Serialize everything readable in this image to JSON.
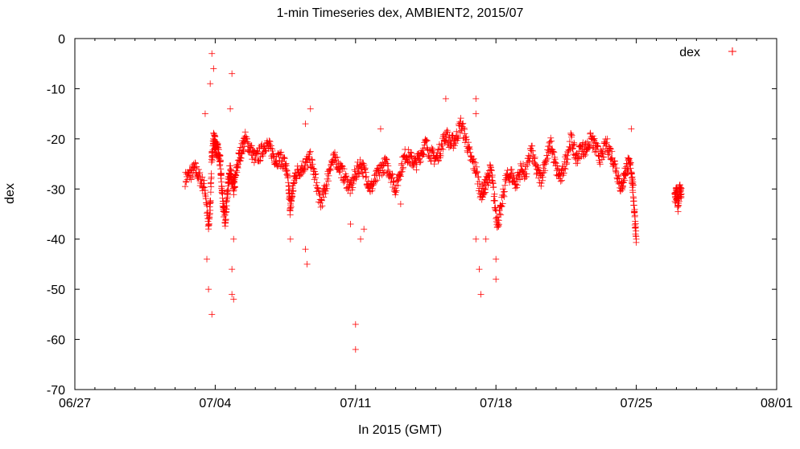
{
  "chart_data": {
    "type": "scatter",
    "title": "1-min Timeseries dex, AMBIENT2, 2015/07",
    "xlabel": "In 2015 (GMT)",
    "ylabel": "dex",
    "x_ticks": [
      "06/27",
      "07/04",
      "07/11",
      "07/18",
      "07/25",
      "08/01"
    ],
    "x_range_days_from_0627": [
      0,
      35
    ],
    "y_ticks": [
      0,
      -10,
      -20,
      -30,
      -40,
      -50,
      -60,
      -70
    ],
    "ylim": [
      -70,
      0
    ],
    "grid": false,
    "legend": "top-right",
    "marker": "+",
    "series": [
      {
        "name": "dex",
        "color": "#ff0000",
        "points": [
          [
            "07/02 12:00",
            -28
          ],
          [
            "07/02 18:00",
            -27
          ],
          [
            "07/03 00:00",
            -26
          ],
          [
            "07/03 06:00",
            -28
          ],
          [
            "07/03 12:00",
            -30
          ],
          [
            "07/03 16:00",
            -38
          ],
          [
            "07/03 18:00",
            -33
          ],
          [
            "07/03 20:00",
            -24
          ],
          [
            "07/03 22:00",
            -20
          ],
          [
            "07/04 00:00",
            -21
          ],
          [
            "07/04 02:00",
            -22
          ],
          [
            "07/04 04:00",
            -23
          ],
          [
            "07/04 06:00",
            -25
          ],
          [
            "07/04 08:00",
            -30
          ],
          [
            "07/04 10:00",
            -34
          ],
          [
            "07/04 12:00",
            -36
          ],
          [
            "07/04 14:00",
            -32
          ],
          [
            "07/04 16:00",
            -28
          ],
          [
            "07/04 18:00",
            -26
          ],
          [
            "07/04 20:00",
            -29
          ],
          [
            "07/04 22:00",
            -30
          ],
          [
            "07/05 00:00",
            -28
          ],
          [
            "07/05 04:00",
            -24
          ],
          [
            "07/05 08:00",
            -22
          ],
          [
            "07/05 12:00",
            -20
          ],
          [
            "07/05 18:00",
            -22
          ],
          [
            "07/06 00:00",
            -24
          ],
          [
            "07/06 06:00",
            -23
          ],
          [
            "07/06 12:00",
            -21
          ],
          [
            "07/06 18:00",
            -22
          ],
          [
            "07/07 00:00",
            -24
          ],
          [
            "07/07 06:00",
            -24
          ],
          [
            "07/07 12:00",
            -25
          ],
          [
            "07/07 16:00",
            -30
          ],
          [
            "07/07 18:00",
            -34
          ],
          [
            "07/07 20:00",
            -31
          ],
          [
            "07/08 00:00",
            -27
          ],
          [
            "07/08 06:00",
            -26
          ],
          [
            "07/08 12:00",
            -25
          ],
          [
            "07/08 18:00",
            -24
          ],
          [
            "07/09 00:00",
            -28
          ],
          [
            "07/09 06:00",
            -33
          ],
          [
            "07/09 12:00",
            -30
          ],
          [
            "07/09 18:00",
            -25
          ],
          [
            "07/10 00:00",
            -24
          ],
          [
            "07/10 06:00",
            -26
          ],
          [
            "07/10 12:00",
            -28
          ],
          [
            "07/10 18:00",
            -30
          ],
          [
            "07/11 00:00",
            -27
          ],
          [
            "07/11 06:00",
            -25
          ],
          [
            "07/11 12:00",
            -27
          ],
          [
            "07/11 18:00",
            -30
          ],
          [
            "07/12 00:00",
            -28
          ],
          [
            "07/12 06:00",
            -26
          ],
          [
            "07/12 12:00",
            -25
          ],
          [
            "07/12 18:00",
            -27
          ],
          [
            "07/13 00:00",
            -30
          ],
          [
            "07/13 06:00",
            -26
          ],
          [
            "07/13 12:00",
            -23
          ],
          [
            "07/13 18:00",
            -24
          ],
          [
            "07/14 00:00",
            -25
          ],
          [
            "07/14 06:00",
            -23
          ],
          [
            "07/14 12:00",
            -21
          ],
          [
            "07/14 18:00",
            -23
          ],
          [
            "07/15 00:00",
            -24
          ],
          [
            "07/15 06:00",
            -22
          ],
          [
            "07/15 12:00",
            -19
          ],
          [
            "07/15 18:00",
            -21
          ],
          [
            "07/16 00:00",
            -20
          ],
          [
            "07/16 06:00",
            -17
          ],
          [
            "07/16 12:00",
            -20
          ],
          [
            "07/16 18:00",
            -24
          ],
          [
            "07/17 00:00",
            -26
          ],
          [
            "07/17 06:00",
            -31
          ],
          [
            "07/17 10:00",
            -30
          ],
          [
            "07/17 14:00",
            -28
          ],
          [
            "07/17 18:00",
            -26
          ],
          [
            "07/17 22:00",
            -32
          ],
          [
            "07/18 02:00",
            -37
          ],
          [
            "07/18 06:00",
            -34
          ],
          [
            "07/18 12:00",
            -28
          ],
          [
            "07/18 18:00",
            -27
          ],
          [
            "07/19 00:00",
            -29
          ],
          [
            "07/19 06:00",
            -26
          ],
          [
            "07/19 12:00",
            -27
          ],
          [
            "07/19 18:00",
            -22
          ],
          [
            "07/20 00:00",
            -26
          ],
          [
            "07/20 06:00",
            -28
          ],
          [
            "07/20 12:00",
            -24
          ],
          [
            "07/20 18:00",
            -21
          ],
          [
            "07/21 00:00",
            -26
          ],
          [
            "07/21 06:00",
            -28
          ],
          [
            "07/21 12:00",
            -24
          ],
          [
            "07/21 18:00",
            -20
          ],
          [
            "07/22 00:00",
            -24
          ],
          [
            "07/22 06:00",
            -22
          ],
          [
            "07/22 12:00",
            -22
          ],
          [
            "07/22 18:00",
            -20
          ],
          [
            "07/23 00:00",
            -22
          ],
          [
            "07/23 06:00",
            -24
          ],
          [
            "07/23 12:00",
            -21
          ],
          [
            "07/23 18:00",
            -23
          ],
          [
            "07/24 00:00",
            -26
          ],
          [
            "07/24 06:00",
            -30
          ],
          [
            "07/24 10:00",
            -27
          ],
          [
            "07/24 14:00",
            -25
          ],
          [
            "07/24 18:00",
            -26
          ],
          [
            "07/24 20:00",
            -30
          ],
          [
            "07/24 22:00",
            -35
          ],
          [
            "07/25 00:00",
            -40
          ],
          [
            "07/26 22:00",
            -32
          ],
          [
            "07/27 00:00",
            -31
          ],
          [
            "07/27 02:00",
            -33
          ],
          [
            "07/27 04:00",
            -30
          ],
          [
            "07/27 06:00",
            -31
          ]
        ],
        "outliers": [
          [
            "07/03 20:00",
            -3
          ],
          [
            "07/03 22:00",
            -6
          ],
          [
            "07/03 18:00",
            -9
          ],
          [
            "07/03 12:00",
            -15
          ],
          [
            "07/03 14:00",
            -44
          ],
          [
            "07/03 20:00",
            -55
          ],
          [
            "07/03 16:00",
            -50
          ],
          [
            "07/04 20:00",
            -7
          ],
          [
            "07/04 18:00",
            -14
          ],
          [
            "07/04 22:00",
            -40
          ],
          [
            "07/04 20:00",
            -46
          ],
          [
            "07/04 20:00",
            -51
          ],
          [
            "07/04 22:00",
            -52
          ],
          [
            "07/08 18:00",
            -14
          ],
          [
            "07/08 12:00",
            -17
          ],
          [
            "07/07 18:00",
            -40
          ],
          [
            "07/08 12:00",
            -42
          ],
          [
            "07/08 14:00",
            -45
          ],
          [
            "07/11 00:00",
            -57
          ],
          [
            "07/11 00:00",
            -62
          ],
          [
            "07/11 06:00",
            -40
          ],
          [
            "07/11 10:00",
            -38
          ],
          [
            "07/10 18:00",
            -37
          ],
          [
            "07/17 00:00",
            -12
          ],
          [
            "07/17 00:00",
            -15
          ],
          [
            "07/17 00:00",
            -40
          ],
          [
            "07/17 04:00",
            -46
          ],
          [
            "07/17 06:00",
            -51
          ],
          [
            "07/17 12:00",
            -40
          ],
          [
            "07/18 00:00",
            -48
          ],
          [
            "07/18 00:00",
            -44
          ],
          [
            "07/24 18:00",
            -18
          ],
          [
            "07/15 12:00",
            -12
          ],
          [
            "07/12 06:00",
            -18
          ],
          [
            "07/13 06:00",
            -33
          ]
        ]
      }
    ]
  }
}
